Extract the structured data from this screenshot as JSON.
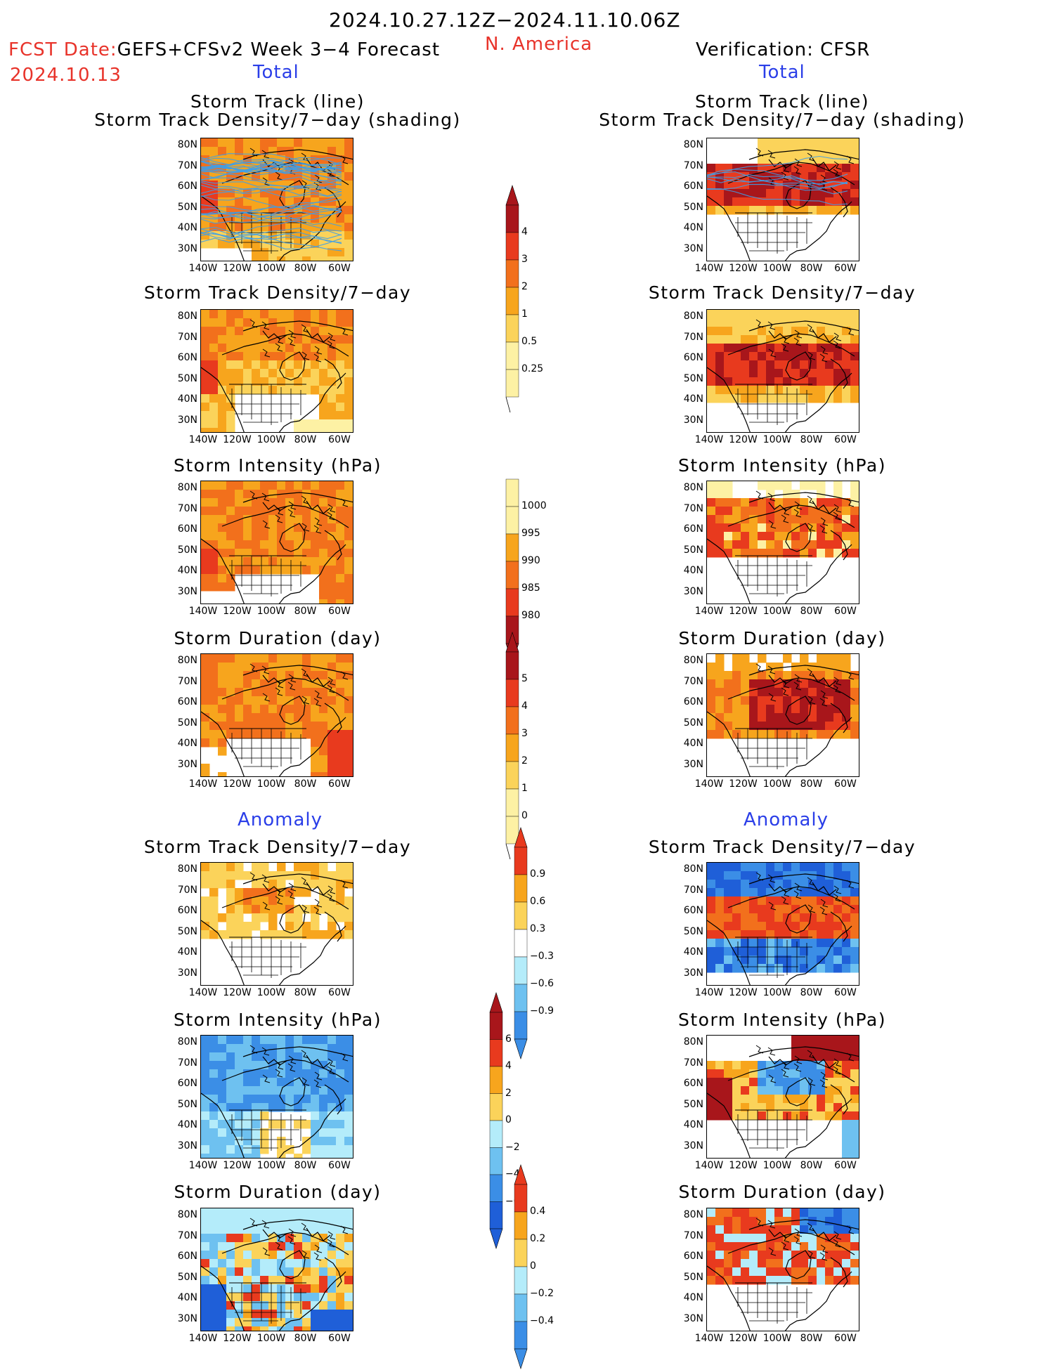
{
  "header": {
    "date_range": "2024.10.27.12Z−2024.11.10.06Z",
    "fcst_date_label": "FCST Date:",
    "fcst_product": "GEFS+CFSv2 Week 3−4 Forecast",
    "fcst_date": "2024.10.13",
    "region": "N. America",
    "verification": "Verification: CFSR",
    "left_total": "Total",
    "right_total": "Total",
    "left_anomaly": "Anomaly",
    "right_anomaly": "Anomaly"
  },
  "panels": {
    "track_title_1": "Storm Track (line)",
    "track_title_2": "Storm Track Density/7−day (shading)",
    "density": "Storm Track Density/7−day",
    "intensity": "Storm Intensity (hPa)",
    "duration": "Storm Duration (day)"
  },
  "axes": {
    "lat": [
      "80N",
      "70N",
      "60N",
      "50N",
      "40N",
      "30N"
    ],
    "lon": [
      "140W",
      "120W",
      "100W",
      "80W",
      "60W"
    ]
  },
  "colorbars": {
    "density_total": [
      "4",
      "3",
      "2",
      "1",
      "0.5",
      "0.25"
    ],
    "intensity_total": [
      "1000",
      "995",
      "990",
      "985",
      "980"
    ],
    "duration_total": [
      "5",
      "4",
      "3",
      "2",
      "1",
      "0"
    ],
    "density_anom": [
      "0.9",
      "0.6",
      "0.3",
      "−0.3",
      "−0.6",
      "−0.9"
    ],
    "intensity_anom": [
      "6",
      "4",
      "2",
      "0",
      "−2",
      "−4",
      "−6"
    ],
    "duration_anom": [
      "0.4",
      "0.2",
      "0",
      "−0.2",
      "−0.4"
    ]
  },
  "colors": {
    "dark_red": "#a8161b",
    "red": "#e83a1e",
    "orange_red": "#f2701c",
    "orange": "#f7a51d",
    "light_orange": "#fbd35a",
    "pale_yellow": "#fdf1a4",
    "light_blue": "#b4ecfa",
    "sky_blue": "#6ec1f0",
    "mid_blue": "#3b8ee6",
    "dark_blue": "#1f5fd8",
    "track_blue": "#3f9ee8",
    "title_red": "#e8332a",
    "title_blue": "#2a3ee8"
  }
}
